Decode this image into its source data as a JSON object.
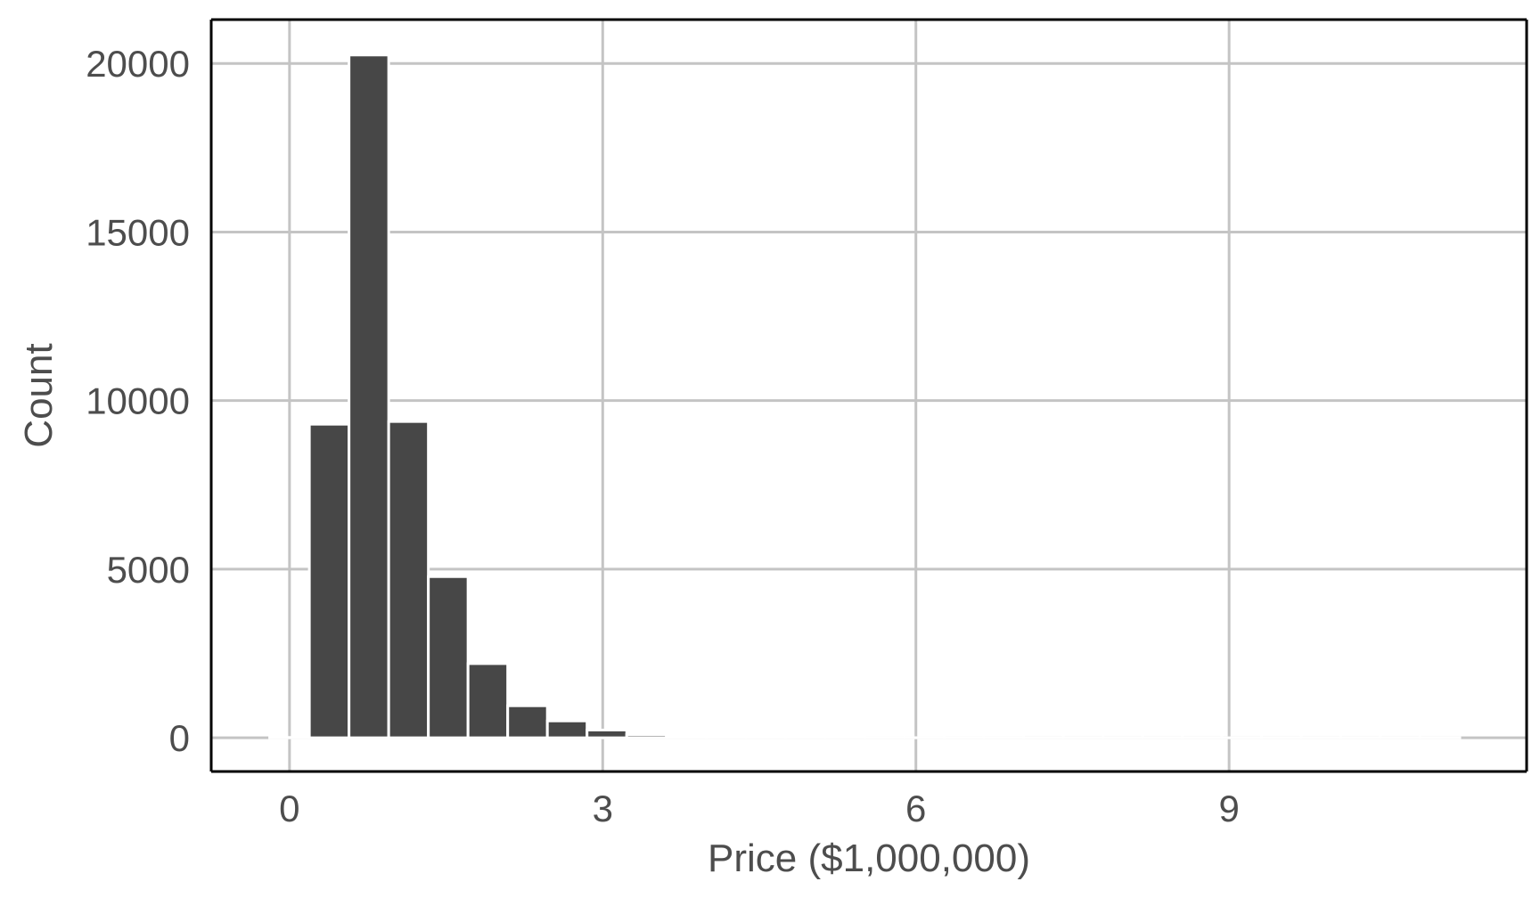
{
  "chart_data": {
    "type": "bar",
    "subtype": "histogram",
    "title": "",
    "xlabel": "Price ($1,000,000)",
    "ylabel": "Count",
    "xlim": [
      -0.75,
      11.85
    ],
    "ylim": [
      -1000,
      21300
    ],
    "x_ticks": [
      0,
      3,
      6,
      9
    ],
    "y_ticks": [
      0,
      5000,
      10000,
      15000,
      20000
    ],
    "grid": true,
    "legend": "none",
    "bin_width": 0.38,
    "bins": [
      {
        "x": 0.0,
        "count": 10
      },
      {
        "x": 0.38,
        "count": 9300
      },
      {
        "x": 0.76,
        "count": 20250
      },
      {
        "x": 1.14,
        "count": 9380
      },
      {
        "x": 1.52,
        "count": 4780
      },
      {
        "x": 1.9,
        "count": 2200
      },
      {
        "x": 2.28,
        "count": 950
      },
      {
        "x": 2.66,
        "count": 500
      },
      {
        "x": 3.04,
        "count": 230
      },
      {
        "x": 3.42,
        "count": 90
      },
      {
        "x": 3.8,
        "count": 40
      },
      {
        "x": 4.18,
        "count": 20
      },
      {
        "x": 4.56,
        "count": 10
      },
      {
        "x": 4.94,
        "count": 5
      },
      {
        "x": 5.32,
        "count": 5
      },
      {
        "x": 5.7,
        "count": 3
      },
      {
        "x": 6.08,
        "count": 3
      },
      {
        "x": 6.46,
        "count": 2
      },
      {
        "x": 6.84,
        "count": 2
      },
      {
        "x": 7.22,
        "count": 1
      },
      {
        "x": 7.6,
        "count": 1
      },
      {
        "x": 7.98,
        "count": 1
      },
      {
        "x": 8.36,
        "count": 1
      },
      {
        "x": 8.74,
        "count": 1
      },
      {
        "x": 9.12,
        "count": 1
      },
      {
        "x": 9.5,
        "count": 1
      },
      {
        "x": 9.88,
        "count": 1
      },
      {
        "x": 10.26,
        "count": 1
      },
      {
        "x": 10.64,
        "count": 1
      },
      {
        "x": 11.02,
        "count": 1
      }
    ],
    "colors": {
      "bar": "#474747",
      "bar_outline": "#ffffff",
      "grid": "#c4c4c4",
      "axis": "#000000",
      "text": "#4d4d4d"
    }
  }
}
